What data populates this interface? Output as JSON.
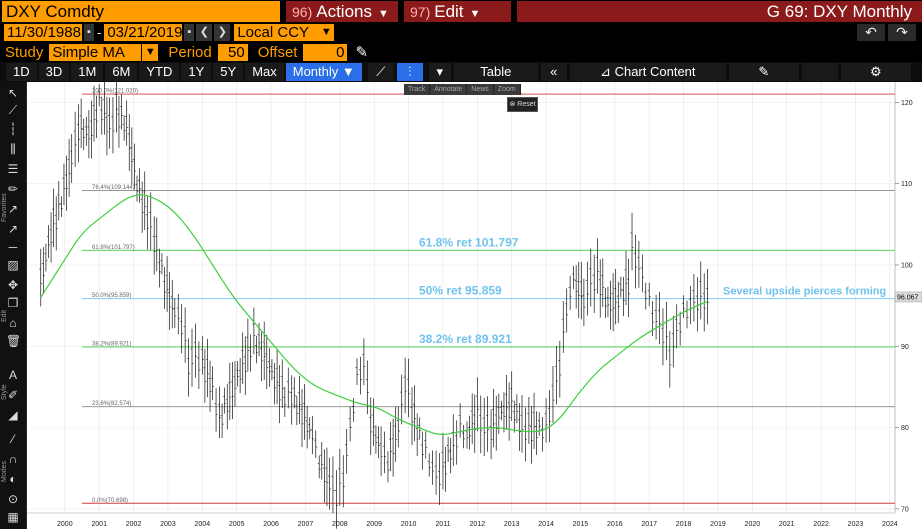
{
  "header": {
    "ticker": "DXY Comdty",
    "actions_num": "96)",
    "actions_label": "Actions",
    "edit_num": "97)",
    "edit_label": "Edit",
    "title": "G 69: DXY Monthly"
  },
  "daterow": {
    "start": "11/30/1988",
    "sep": "-",
    "end": "03/21/2019",
    "currency": "Local CCY"
  },
  "study": {
    "label": "Study",
    "value": "Simple MA",
    "period_label": "Period",
    "period_value": "50",
    "offset_label": "Offset",
    "offset_value": "0"
  },
  "tabs": [
    "1D",
    "3D",
    "1M",
    "6M",
    "YTD",
    "1Y",
    "5Y",
    "Max"
  ],
  "frequency": "Monthly",
  "buttons": {
    "table": "Table",
    "chart_content": "Chart Content"
  },
  "mini_toolbar": [
    "Track",
    "Annotate",
    "News",
    "Zoom"
  ],
  "reset": "Reset",
  "sidebar_labels": {
    "favorites": "Favorites",
    "edit": "Edit",
    "style": "Style",
    "modes": "Modes"
  },
  "colors": {
    "accent": "#ff9c00",
    "menu": "#8b1a1a",
    "active_tab": "#2a6ee8",
    "ma": "#3ecf3e",
    "annot": "#6fc3ee"
  },
  "chart_data": {
    "type": "line",
    "x_ticks": [
      "2000",
      "2001",
      "2002",
      "2003",
      "2004",
      "2005",
      "2006",
      "2007",
      "2008",
      "2009",
      "2010",
      "2011",
      "2012",
      "2013",
      "2014",
      "2015",
      "2016",
      "2017",
      "2018",
      "2019",
      "2020",
      "2021",
      "2022",
      "2023",
      "2024"
    ],
    "y_ticks": [
      120,
      110,
      100,
      90,
      80,
      70
    ],
    "ylim": [
      69.5,
      122.5
    ],
    "last_value": "96.067",
    "fib_levels": [
      {
        "label": "100.0%(121.020)",
        "value": 121.02,
        "color": "#d23b3b"
      },
      {
        "label": "76.4%(109.144)",
        "value": 109.144,
        "color": "#888888"
      },
      {
        "label": "61.8%(101.797)",
        "value": 101.797,
        "color": "#3ecf3e"
      },
      {
        "label": "50.0%(95.859)",
        "value": 95.859,
        "color": "#6fc3ee"
      },
      {
        "label": "38.2%(89.921)",
        "value": 89.921,
        "color": "#3ecf3e"
      },
      {
        "label": "23.6%(82.574)",
        "value": 82.574,
        "color": "#888888"
      },
      {
        "label": "0.0%(70.698)",
        "value": 70.698,
        "color": "#d23b3b"
      }
    ],
    "annotations": [
      {
        "text": "61.8% ret 101.797",
        "value": 101.797
      },
      {
        "text": "50% ret 95.859",
        "value": 95.859
      },
      {
        "text": "38.2% ret 89.921",
        "value": 89.921
      },
      {
        "text": "Several upside pierces forming",
        "value": 95.859
      }
    ],
    "price": [
      [
        1999.8,
        98
      ],
      [
        2000.1,
        104
      ],
      [
        2000.4,
        108
      ],
      [
        2000.7,
        113
      ],
      [
        2000.9,
        117
      ],
      [
        2001.2,
        116
      ],
      [
        2001.5,
        120
      ],
      [
        2001.8,
        117
      ],
      [
        2002.0,
        119
      ],
      [
        2002.3,
        117
      ],
      [
        2002.6,
        110
      ],
      [
        2002.9,
        106
      ],
      [
        2003.1,
        103
      ],
      [
        2003.4,
        98
      ],
      [
        2003.7,
        94
      ],
      [
        2003.9,
        93
      ],
      [
        2004.1,
        88
      ],
      [
        2004.3,
        89
      ],
      [
        2004.5,
        88
      ],
      [
        2004.8,
        85
      ],
      [
        2005.0,
        81
      ],
      [
        2005.3,
        84
      ],
      [
        2005.6,
        87
      ],
      [
        2005.9,
        90
      ],
      [
        2006.0,
        91
      ],
      [
        2006.3,
        89
      ],
      [
        2006.6,
        86
      ],
      [
        2006.9,
        84
      ],
      [
        2007.1,
        84
      ],
      [
        2007.4,
        82
      ],
      [
        2007.7,
        79
      ],
      [
        2007.9,
        76
      ],
      [
        2008.2,
        73
      ],
      [
        2008.4,
        72
      ],
      [
        2008.6,
        74
      ],
      [
        2008.8,
        80
      ],
      [
        2009.0,
        86
      ],
      [
        2009.2,
        88
      ],
      [
        2009.4,
        81
      ],
      [
        2009.7,
        77
      ],
      [
        2009.9,
        76
      ],
      [
        2010.2,
        80
      ],
      [
        2010.4,
        86
      ],
      [
        2010.6,
        82
      ],
      [
        2010.9,
        78
      ],
      [
        2011.1,
        76
      ],
      [
        2011.3,
        74
      ],
      [
        2011.5,
        75
      ],
      [
        2011.8,
        78
      ],
      [
        2012.0,
        80
      ],
      [
        2012.2,
        79
      ],
      [
        2012.5,
        82
      ],
      [
        2012.7,
        80
      ],
      [
        2012.9,
        80
      ],
      [
        2013.2,
        82
      ],
      [
        2013.5,
        83
      ],
      [
        2013.8,
        80
      ],
      [
        2014.0,
        80
      ],
      [
        2014.3,
        80
      ],
      [
        2014.5,
        80
      ],
      [
        2014.7,
        84
      ],
      [
        2014.9,
        88
      ],
      [
        2015.1,
        95
      ],
      [
        2015.3,
        98
      ],
      [
        2015.6,
        96
      ],
      [
        2015.8,
        98
      ],
      [
        2016.0,
        99
      ],
      [
        2016.3,
        95
      ],
      [
        2016.6,
        96
      ],
      [
        2016.9,
        98
      ],
      [
        2017.0,
        102
      ],
      [
        2017.2,
        100
      ],
      [
        2017.4,
        97
      ],
      [
        2017.6,
        94
      ],
      [
        2017.8,
        93
      ],
      [
        2018.0,
        91
      ],
      [
        2018.1,
        89
      ],
      [
        2018.3,
        92
      ],
      [
        2018.5,
        94
      ],
      [
        2018.7,
        95
      ],
      [
        2018.9,
        96
      ],
      [
        2019.1,
        96
      ],
      [
        2019.2,
        96.1
      ]
    ],
    "ma": [
      [
        1999.8,
        96
      ],
      [
        2000.4,
        100
      ],
      [
        2001.0,
        104
      ],
      [
        2001.6,
        106
      ],
      [
        2002.2,
        108
      ],
      [
        2002.6,
        108.7
      ],
      [
        2003.0,
        108.5
      ],
      [
        2003.6,
        107
      ],
      [
        2004.2,
        104
      ],
      [
        2004.8,
        100
      ],
      [
        2005.4,
        96
      ],
      [
        2006.0,
        93
      ],
      [
        2006.6,
        90
      ],
      [
        2007.2,
        87
      ],
      [
        2007.8,
        85
      ],
      [
        2008.4,
        84
      ],
      [
        2009.0,
        83
      ],
      [
        2009.6,
        82.5
      ],
      [
        2010.2,
        81
      ],
      [
        2010.8,
        80
      ],
      [
        2011.4,
        79
      ],
      [
        2012.0,
        79.5
      ],
      [
        2012.6,
        80
      ],
      [
        2013.2,
        80
      ],
      [
        2013.8,
        79.5
      ],
      [
        2014.4,
        79.5
      ],
      [
        2014.9,
        81
      ],
      [
        2015.4,
        84
      ],
      [
        2016.0,
        87
      ],
      [
        2016.6,
        89
      ],
      [
        2017.2,
        91
      ],
      [
        2017.8,
        92.5
      ],
      [
        2018.4,
        94
      ],
      [
        2019.0,
        95.2
      ],
      [
        2019.2,
        95.5
      ]
    ]
  }
}
